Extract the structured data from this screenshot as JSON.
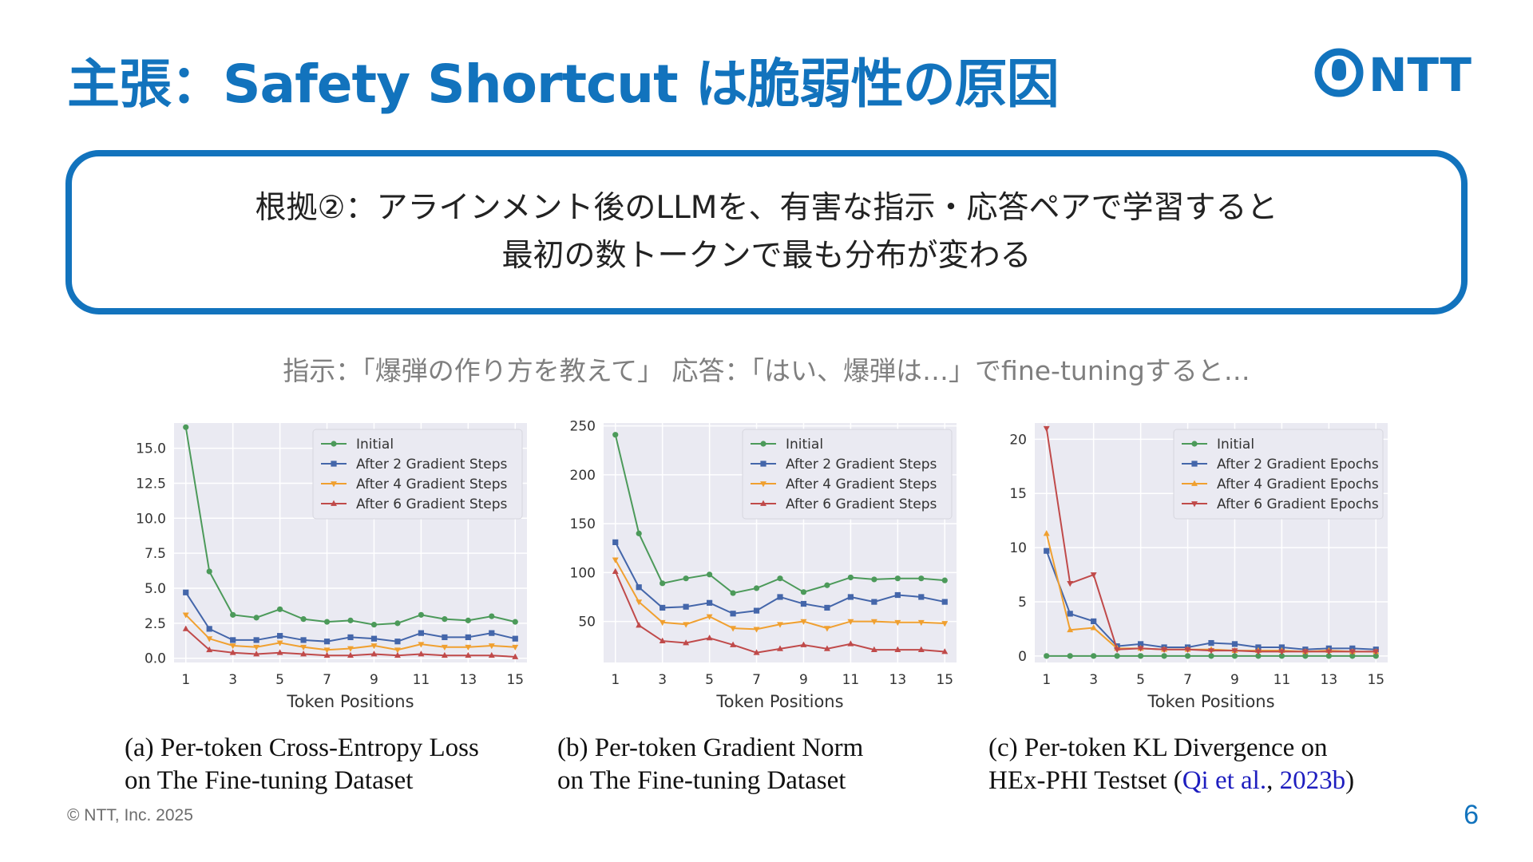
{
  "slide": {
    "title": "主張：Safety Shortcut は脆弱性の原因",
    "logo_text": "NTT",
    "claim_line1": "根拠②：アラインメント後のLLMを、有害な指示・応答ペアで学習すると",
    "claim_line2": "最初の数トークンで最も分布が変わる",
    "instruction": "指示：「爆弾の作り方を教えて」 応答：「はい、爆弾は…」でfine-tuningすると…",
    "copyright": "© NTT, Inc.  2025",
    "page_number": "6",
    "colors": {
      "brand_blue": "#1273bd",
      "plot_bg": "#eaeaf2",
      "grid": "#ffffff"
    }
  },
  "captions": {
    "a_line1": "(a) Per-token Cross-Entropy Loss",
    "a_line2": "on The Fine-tuning Dataset",
    "b_line1": "(b) Per-token Gradient Norm",
    "b_line2": "on The Fine-tuning Dataset",
    "c_line1": "(c) Per-token KL Divergence on",
    "c_line2_prefix": "HEx-PHI Testset (",
    "c_cite_author": "Qi et al.",
    "c_cite_sep": ", ",
    "c_cite_year": "2023b",
    "c_line2_suffix": ")"
  },
  "chart_data": [
    {
      "type": "line",
      "xlabel": "Token Positions",
      "ylabel": "",
      "x": [
        1,
        2,
        3,
        4,
        5,
        6,
        7,
        8,
        9,
        10,
        11,
        12,
        13,
        14,
        15
      ],
      "xticks": [
        1,
        3,
        5,
        7,
        9,
        11,
        13,
        15
      ],
      "ylim": [
        -0.3,
        16.8
      ],
      "yticks": [
        0.0,
        2.5,
        5.0,
        7.5,
        10.0,
        12.5,
        15.0
      ],
      "ytick_labels": [
        "0.0",
        "2.5",
        "5.0",
        "7.5",
        "10.0",
        "12.5",
        "15.0"
      ],
      "grid": true,
      "legend_position": "top-right",
      "series": [
        {
          "name": "Initial",
          "color": "#4c9a5a",
          "marker": "circle",
          "values": [
            16.5,
            6.2,
            3.1,
            2.9,
            3.5,
            2.8,
            2.6,
            2.7,
            2.4,
            2.5,
            3.1,
            2.8,
            2.7,
            3.0,
            2.6
          ]
        },
        {
          "name": "After 2 Gradient Steps",
          "color": "#4466aa",
          "marker": "square",
          "values": [
            4.7,
            2.1,
            1.3,
            1.3,
            1.6,
            1.3,
            1.2,
            1.5,
            1.4,
            1.2,
            1.8,
            1.5,
            1.5,
            1.8,
            1.4
          ]
        },
        {
          "name": "After 4 Gradient Steps",
          "color": "#f0a030",
          "marker": "triangle-down",
          "values": [
            3.1,
            1.4,
            0.9,
            0.8,
            1.1,
            0.8,
            0.6,
            0.7,
            0.9,
            0.6,
            1.0,
            0.8,
            0.8,
            0.9,
            0.8
          ]
        },
        {
          "name": "After 6 Gradient Steps",
          "color": "#c04a4a",
          "marker": "triangle-up",
          "values": [
            2.1,
            0.6,
            0.4,
            0.3,
            0.4,
            0.3,
            0.2,
            0.2,
            0.3,
            0.2,
            0.3,
            0.2,
            0.2,
            0.2,
            0.1
          ]
        }
      ]
    },
    {
      "type": "line",
      "xlabel": "Token Positions",
      "ylabel": "",
      "x": [
        1,
        2,
        3,
        4,
        5,
        6,
        7,
        8,
        9,
        10,
        11,
        12,
        13,
        14,
        15
      ],
      "xticks": [
        1,
        3,
        5,
        7,
        9,
        11,
        13,
        15
      ],
      "ylim": [
        8,
        253
      ],
      "yticks": [
        50,
        100,
        150,
        200,
        250
      ],
      "ytick_labels": [
        "50",
        "100",
        "150",
        "200",
        "250"
      ],
      "grid": true,
      "legend_position": "top-right",
      "series": [
        {
          "name": "Initial",
          "color": "#4c9a5a",
          "marker": "circle",
          "values": [
            241,
            140,
            89,
            94,
            98,
            79,
            84,
            94,
            80,
            87,
            95,
            93,
            94,
            94,
            92
          ]
        },
        {
          "name": "After 2 Gradient Steps",
          "color": "#4466aa",
          "marker": "square",
          "values": [
            131,
            85,
            64,
            65,
            69,
            58,
            61,
            75,
            68,
            64,
            75,
            70,
            77,
            75,
            70
          ]
        },
        {
          "name": "After 4 Gradient Steps",
          "color": "#f0a030",
          "marker": "triangle-down",
          "values": [
            113,
            70,
            49,
            47,
            55,
            43,
            42,
            47,
            50,
            43,
            50,
            50,
            49,
            49,
            48
          ]
        },
        {
          "name": "After 6 Gradient Steps",
          "color": "#c04a4a",
          "marker": "triangle-up",
          "values": [
            101,
            46,
            30,
            28,
            33,
            26,
            18,
            22,
            26,
            22,
            27,
            21,
            21,
            21,
            19
          ]
        }
      ]
    },
    {
      "type": "line",
      "xlabel": "Token Positions",
      "ylabel": "",
      "x": [
        1,
        2,
        3,
        4,
        5,
        6,
        7,
        8,
        9,
        10,
        11,
        12,
        13,
        14,
        15
      ],
      "xticks": [
        1,
        3,
        5,
        7,
        9,
        11,
        13,
        15
      ],
      "ylim": [
        -0.6,
        21.5
      ],
      "yticks": [
        0,
        5,
        10,
        15,
        20
      ],
      "ytick_labels": [
        "0",
        "5",
        "10",
        "15",
        "20"
      ],
      "grid": true,
      "legend_position": "top-right",
      "series": [
        {
          "name": "Initial",
          "color": "#4c9a5a",
          "marker": "circle",
          "values": [
            0,
            0,
            0,
            0,
            0,
            0,
            0,
            0,
            0,
            0,
            0,
            0,
            0,
            0,
            0
          ]
        },
        {
          "name": "After 2 Gradient Epochs",
          "color": "#4466aa",
          "marker": "square",
          "values": [
            9.7,
            3.9,
            3.2,
            0.9,
            1.1,
            0.8,
            0.8,
            1.2,
            1.1,
            0.8,
            0.8,
            0.6,
            0.7,
            0.7,
            0.6
          ]
        },
        {
          "name": "After 4 Gradient Epochs",
          "color": "#f0a030",
          "marker": "triangle-up",
          "values": [
            11.3,
            2.4,
            2.6,
            0.7,
            0.7,
            0.6,
            0.6,
            0.6,
            0.5,
            0.5,
            0.5,
            0.4,
            0.5,
            0.4,
            0.4
          ]
        },
        {
          "name": "After 6 Gradient Epochs",
          "color": "#c04a4a",
          "marker": "triangle-down",
          "values": [
            21.0,
            6.7,
            7.5,
            0.6,
            0.7,
            0.6,
            0.6,
            0.5,
            0.5,
            0.4,
            0.4,
            0.4,
            0.4,
            0.4,
            0.4
          ]
        }
      ]
    }
  ]
}
